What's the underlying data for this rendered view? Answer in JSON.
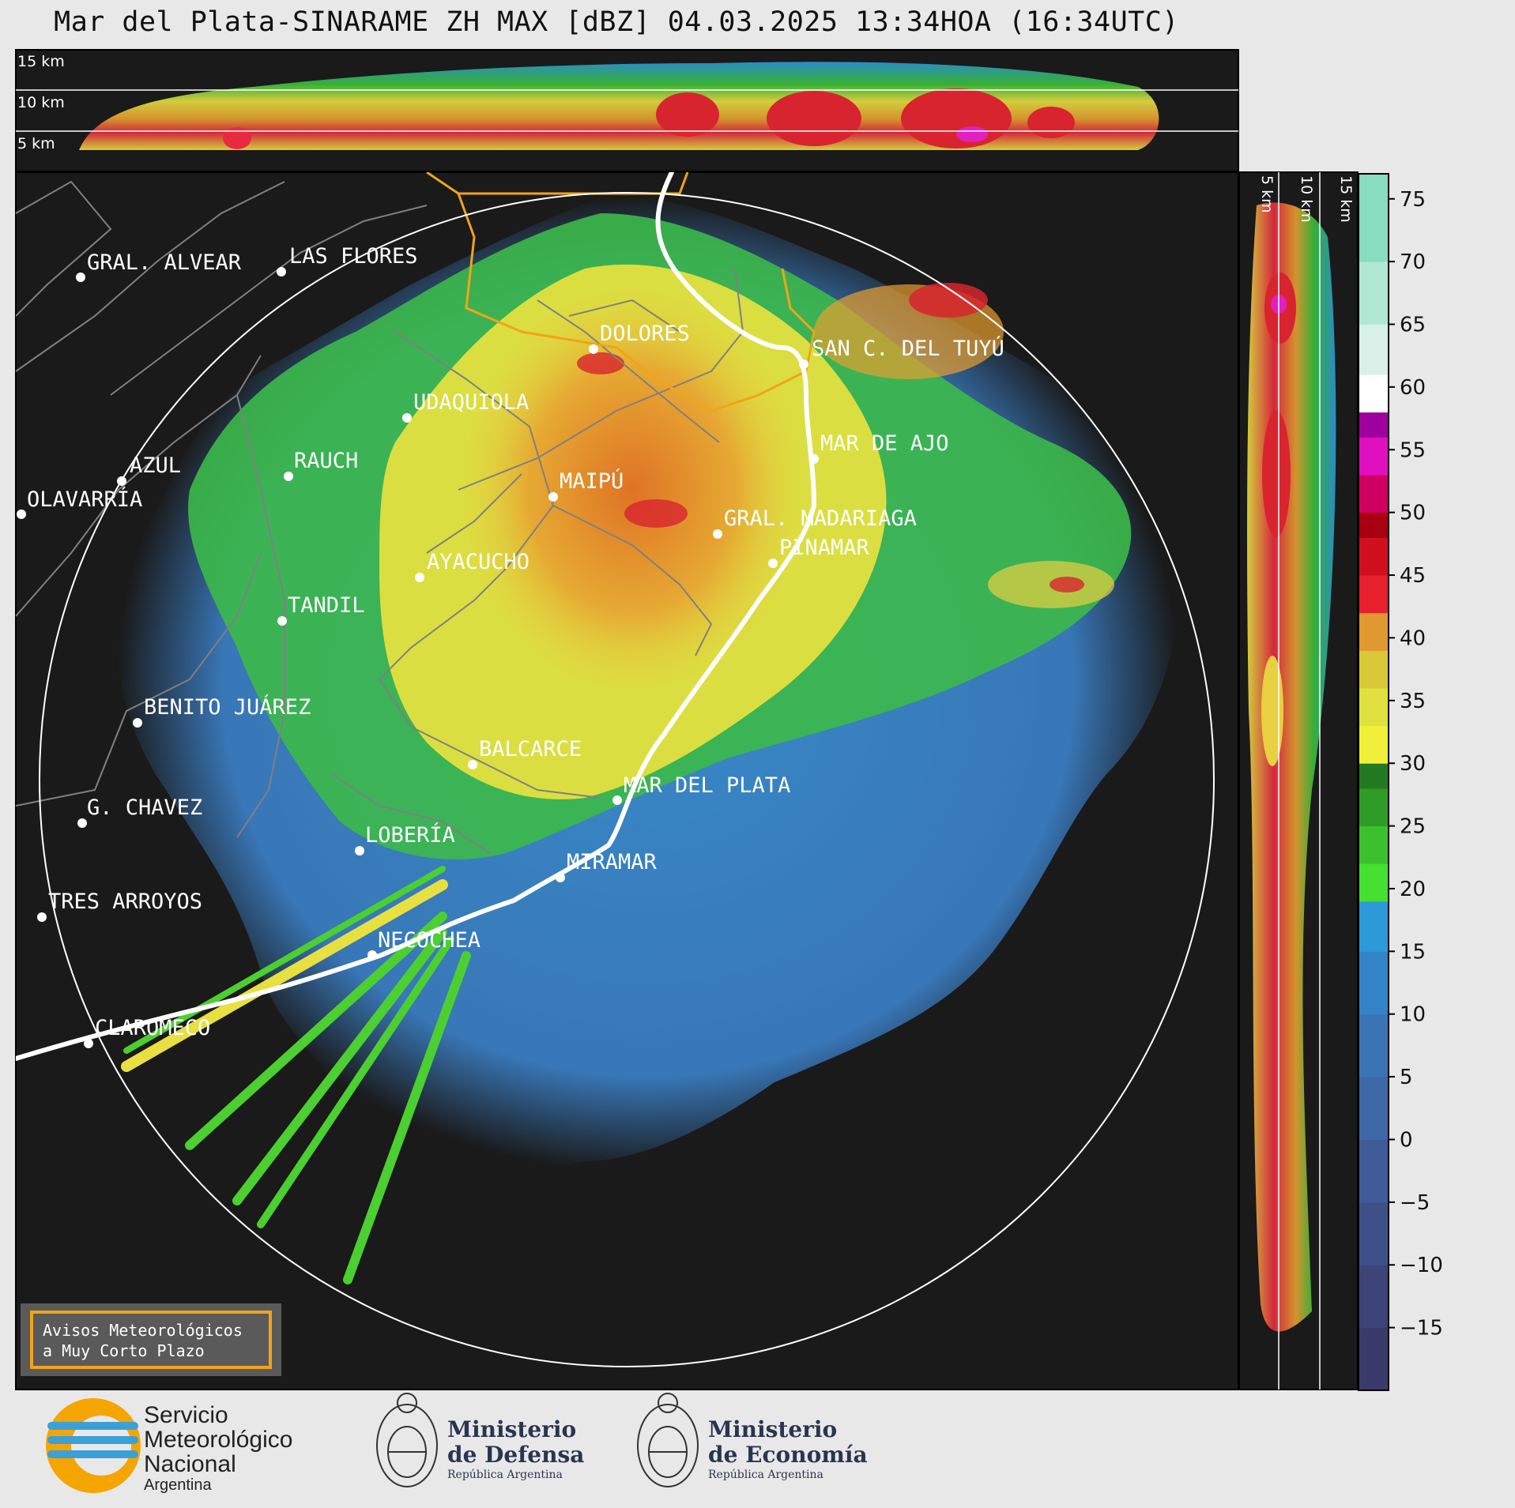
{
  "title": "Mar del Plata-SINARAME ZH MAX [dBZ] 04.03.2025 13:34HOA (16:34UTC)",
  "top_panel": {
    "height_labels": [
      "15 km",
      "10 km",
      "5 km"
    ]
  },
  "side_panel": {
    "height_labels": [
      "5 km",
      "10 km",
      "15 km"
    ]
  },
  "colorbar": {
    "ticks": [
      "75",
      "70",
      "65",
      "60",
      "55",
      "50",
      "45",
      "40",
      "35",
      "30",
      "25",
      "20",
      "15",
      "10",
      "5",
      "0",
      "−5",
      "−10",
      "−15"
    ],
    "min": -20,
    "max": 77
  },
  "cities": [
    {
      "name": "GRAL. ALVEAR"
    },
    {
      "name": "LAS FLORES"
    },
    {
      "name": "DOLORES"
    },
    {
      "name": "SAN C. DEL TUYÚ"
    },
    {
      "name": "UDAQUIOLA"
    },
    {
      "name": "MAR DE AJO"
    },
    {
      "name": "AZUL"
    },
    {
      "name": "RAUCH"
    },
    {
      "name": "OLAVARRÍA"
    },
    {
      "name": "MAIPÚ"
    },
    {
      "name": "GRAL. MADARIAGA"
    },
    {
      "name": "PINAMAR"
    },
    {
      "name": "AYACUCHO"
    },
    {
      "name": "TANDIL"
    },
    {
      "name": "BENITO JUÁREZ"
    },
    {
      "name": "BALCARCE"
    },
    {
      "name": "MAR DEL PLATA"
    },
    {
      "name": "G. CHAVEZ"
    },
    {
      "name": "LOBERÍA"
    },
    {
      "name": "MIRAMAR"
    },
    {
      "name": "TRES ARROYOS"
    },
    {
      "name": "NECOCHEA"
    },
    {
      "name": "CLAROMECO"
    }
  ],
  "avisos": {
    "line1": "Avisos Meteorológicos",
    "line2": "a Muy Corto Plazo"
  },
  "logos": {
    "smn": {
      "line1": "Servicio",
      "line2": "Meteorológico",
      "line3": "Nacional",
      "line4": "Argentina"
    },
    "defensa": {
      "line1": "Ministerio",
      "line2": "de Defensa",
      "line3": "República Argentina"
    },
    "economia": {
      "line1": "Ministerio",
      "line2": "de Economía",
      "line3": "República Argentina"
    }
  },
  "colors": {
    "background": "#1a1a1a",
    "range_ring": "#ffffff",
    "coast": "#ffffff",
    "province_border": "#f0a418",
    "county_border": "#808080"
  }
}
